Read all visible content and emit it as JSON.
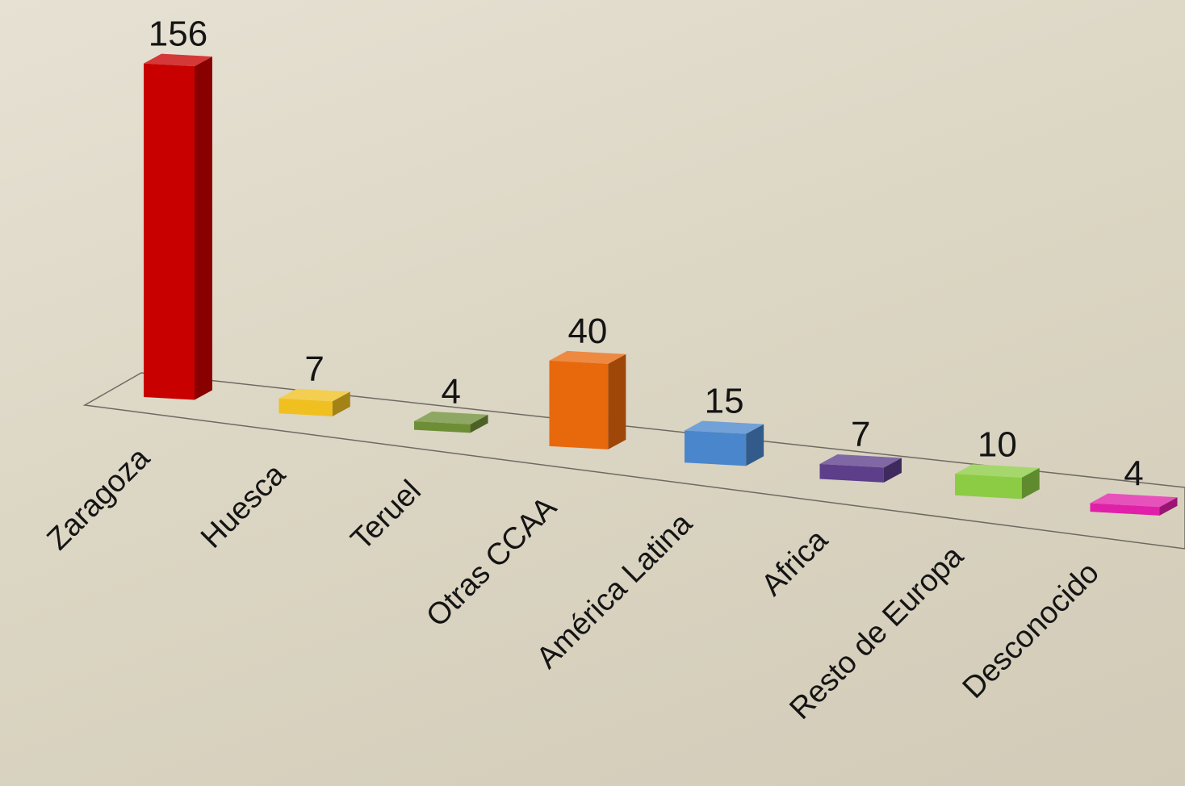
{
  "chart_data": {
    "type": "bar",
    "categories": [
      "Zaragoza",
      "Huesca",
      "Teruel",
      "Otras CCAA",
      "América Latina",
      "Africa",
      "Resto de Europa",
      "Desconocido"
    ],
    "values": [
      156,
      7,
      4,
      40,
      15,
      7,
      10,
      4
    ],
    "colors": [
      "#c80000",
      "#f0c020",
      "#6e8e36",
      "#e8680c",
      "#4a86cc",
      "#5c3e8a",
      "#8ccc44",
      "#e020a8"
    ],
    "title": "",
    "xlabel": "",
    "ylabel": "",
    "ylim": [
      0,
      156
    ],
    "grid": false,
    "legend": "none",
    "style": "3d-perspective",
    "data_labels": true
  }
}
